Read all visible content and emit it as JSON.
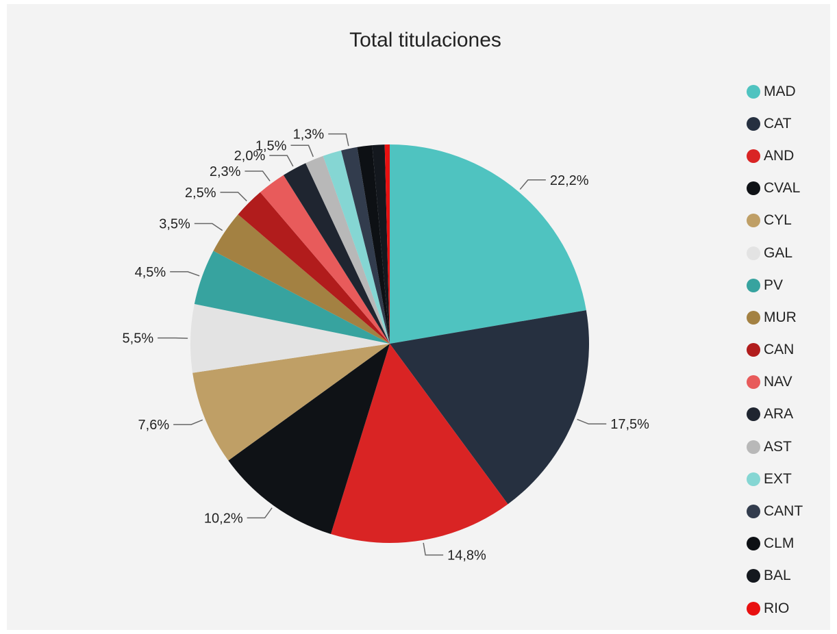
{
  "chart_data": {
    "type": "pie",
    "title": "Total titulaciones",
    "legend_position": "right",
    "slices": [
      {
        "name": "MAD",
        "value": 22.2,
        "label": "22,2%",
        "color": "#4fc3c0"
      },
      {
        "name": "CAT",
        "value": 17.5,
        "label": "17,5%",
        "color": "#263040"
      },
      {
        "name": "AND",
        "value": 14.8,
        "label": "14,8%",
        "color": "#d92424"
      },
      {
        "name": "CVAL",
        "value": 10.2,
        "label": "10,2%",
        "color": "#0f1216"
      },
      {
        "name": "CYL",
        "value": 7.6,
        "label": "7,6%",
        "color": "#bf9f66"
      },
      {
        "name": "GAL",
        "value": 5.5,
        "label": "5,5%",
        "color": "#e3e3e3"
      },
      {
        "name": "PV",
        "value": 4.5,
        "label": "4,5%",
        "color": "#37a39f"
      },
      {
        "name": "MUR",
        "value": 3.5,
        "label": "3,5%",
        "color": "#a38142"
      },
      {
        "name": "CAN",
        "value": 2.5,
        "label": "2,5%",
        "color": "#b11c1c"
      },
      {
        "name": "NAV",
        "value": 2.3,
        "label": "2,3%",
        "color": "#e85b5b"
      },
      {
        "name": "ARA",
        "value": 2.0,
        "label": "2,0%",
        "color": "#1f2530"
      },
      {
        "name": "AST",
        "value": 1.5,
        "label": "1,5%",
        "color": "#b8b8b8"
      },
      {
        "name": "EXT",
        "value": 1.5,
        "label": "",
        "color": "#85d6d3"
      },
      {
        "name": "CANT",
        "value": 1.3,
        "label": "1,3%",
        "color": "#323c4d"
      },
      {
        "name": "CLM",
        "value": 1.2,
        "label": "",
        "color": "#0d1014"
      },
      {
        "name": "BAL",
        "value": 1.0,
        "label": "",
        "color": "#14181e"
      },
      {
        "name": "RIO",
        "value": 0.4,
        "label": "",
        "color": "#e81010"
      }
    ]
  }
}
